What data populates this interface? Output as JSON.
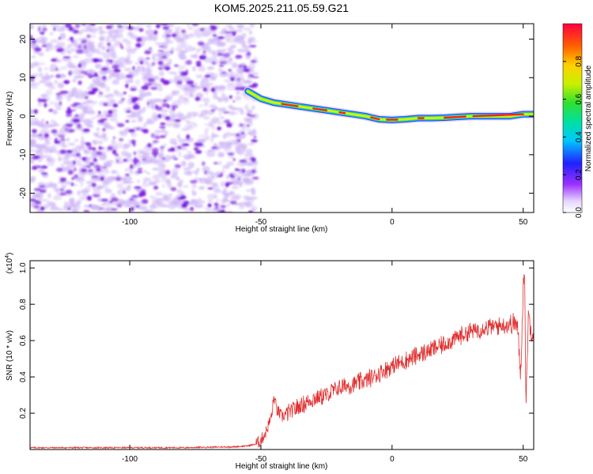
{
  "title": "KOM5.2025.211.05.59.G21",
  "colors": {
    "snr_line": "#e03030",
    "axis": "#000000",
    "background": "#ffffff",
    "noise_base": "#cdb4f6",
    "noise_strong": "#7a10e0"
  },
  "chart_data": [
    {
      "type": "heatmap",
      "xlabel": "Height of straight line (km)",
      "ylabel": "Frequency (Hz)",
      "xlim": [
        -138,
        54
      ],
      "ylim": [
        -25,
        24
      ],
      "xticks": [
        -100,
        -50,
        0,
        50
      ],
      "xtick_labels": [
        "-100",
        "-50",
        "0",
        "50"
      ],
      "yticks": [
        -20,
        -10,
        0,
        10,
        20
      ],
      "ytick_labels": [
        "-20",
        "-10",
        "0",
        "10",
        "20"
      ],
      "noise_region_x": [
        -138,
        -52
      ],
      "ridge": {
        "x": [
          -55,
          -50,
          -45,
          -40,
          -35,
          -30,
          -25,
          -20,
          -15,
          -10,
          -5,
          0,
          5,
          10,
          15,
          20,
          25,
          30,
          35,
          40,
          45,
          50,
          54
        ],
        "y": [
          6.5,
          4.5,
          3.5,
          3.0,
          2.5,
          2.0,
          1.5,
          1.0,
          0.5,
          0.0,
          -0.8,
          -1.0,
          -0.8,
          -0.5,
          -0.5,
          -0.4,
          -0.2,
          0.0,
          0.0,
          0.0,
          0.0,
          0.5,
          0.5
        ]
      },
      "colorbar": {
        "label": "Normalized spectral amplitude",
        "range": [
          0.0,
          1.0
        ],
        "ticks": [
          0.0,
          0.2,
          0.4,
          0.6,
          0.8
        ],
        "tick_labels": [
          "0.0",
          "0.2",
          "0.4",
          "0.6",
          "0.8"
        ]
      }
    },
    {
      "type": "line",
      "xlabel": "Height of straight line (km)",
      "ylabel": "SNR (10 * v/v)",
      "y_multiplier": "(x10",
      "y_multiplier_exp": "4",
      "y_multiplier_close": ")",
      "xlim": [
        -138,
        54
      ],
      "ylim": [
        0,
        1.04
      ],
      "xticks": [
        -100,
        -50,
        0,
        50
      ],
      "xtick_labels": [
        "-100",
        "-50",
        "0",
        "50"
      ],
      "yticks": [
        0.2,
        0.4,
        0.6,
        0.8,
        1.0
      ],
      "ytick_labels": [
        "0.2",
        "0.4",
        "0.6",
        "0.8",
        "1.0"
      ],
      "series": [
        {
          "x": [
            -138,
            -120,
            -100,
            -80,
            -60,
            -55,
            -52,
            -50,
            -48,
            -46,
            -45,
            -44,
            -42,
            -40,
            -35,
            -30,
            -25,
            -20,
            -15,
            -10,
            -5,
            0,
            5,
            10,
            15,
            20,
            25,
            30,
            35,
            40,
            45,
            47,
            48,
            49,
            50,
            50.5,
            51,
            52,
            53,
            54
          ],
          "y": [
            0.01,
            0.01,
            0.01,
            0.01,
            0.015,
            0.02,
            0.03,
            0.05,
            0.1,
            0.18,
            0.29,
            0.22,
            0.18,
            0.2,
            0.24,
            0.28,
            0.3,
            0.34,
            0.36,
            0.38,
            0.42,
            0.46,
            0.49,
            0.52,
            0.55,
            0.58,
            0.62,
            0.65,
            0.67,
            0.68,
            0.69,
            0.7,
            0.65,
            0.4,
            0.9,
            1.03,
            0.25,
            0.75,
            0.65,
            0.66
          ]
        }
      ]
    }
  ]
}
